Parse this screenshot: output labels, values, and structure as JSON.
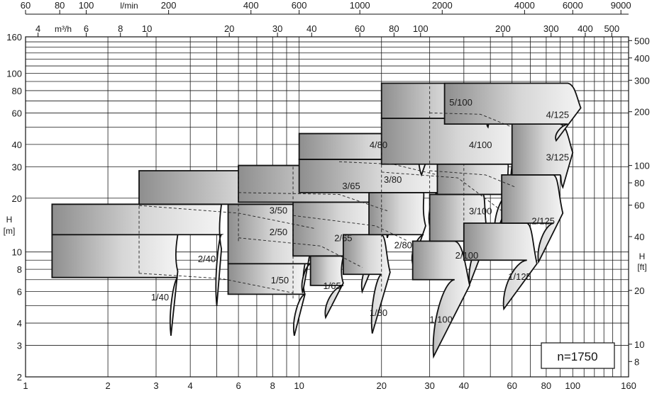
{
  "chart_data": {
    "type": "pump-selection-chart",
    "speed_label": "n=1750",
    "x_axis": {
      "scale": "log",
      "range": [
        1,
        160
      ],
      "ticks": [
        1,
        2,
        3,
        4,
        6,
        8,
        10,
        20,
        30,
        40,
        60,
        80,
        100,
        160
      ],
      "tick_labels": [
        "1",
        "2",
        "3",
        "4",
        "6",
        "8",
        "10",
        "20",
        "30",
        "40",
        "60",
        "80",
        "100",
        "160"
      ]
    },
    "x_axis_m3h": {
      "unit": "m³/h",
      "ticks": [
        4,
        6,
        8,
        10,
        20,
        30,
        40,
        60,
        80,
        100,
        200,
        300,
        400,
        500
      ],
      "tick_labels": [
        "4",
        "6",
        "8",
        "10",
        "20",
        "30",
        "40",
        "60",
        "80",
        "100",
        "200",
        "300",
        "400",
        "500"
      ]
    },
    "x_axis_lmin": {
      "unit": "l/min",
      "ticks": [
        60,
        80,
        100,
        200,
        400,
        600,
        1000,
        2000,
        4000,
        6000,
        9000
      ],
      "tick_labels": [
        "60",
        "80",
        "100",
        "200",
        "400",
        "600",
        "1000",
        "2000",
        "4000",
        "6000",
        "9000"
      ]
    },
    "y_axis": {
      "label": "H",
      "unit": "[m]",
      "scale": "log",
      "range": [
        2,
        160
      ],
      "ticks": [
        2,
        3,
        4,
        6,
        8,
        10,
        20,
        30,
        40,
        60,
        80,
        100,
        160
      ],
      "tick_labels": [
        "2",
        "3",
        "4",
        "6",
        "8",
        "10",
        "20",
        "30",
        "40",
        "60",
        "80",
        "100",
        "160"
      ]
    },
    "y_axis_ft": {
      "label": "H",
      "unit": "[ft]",
      "ticks": [
        8,
        10,
        20,
        40,
        60,
        80,
        100,
        200,
        300,
        400,
        500
      ],
      "tick_labels": [
        "8",
        "10",
        "20",
        "40",
        "60",
        "80",
        "100",
        "200",
        "300",
        "400",
        "500"
      ]
    },
    "zones": [
      {
        "label": "1/40",
        "x": [
          1.25,
          3.6
        ],
        "h_top": 12.5,
        "h_bot": 7.2,
        "end_top": [
          3.6,
          7.8
        ],
        "end_bot": [
          3.4,
          3.4
        ],
        "label_at": [
          3.1,
          5.6
        ]
      },
      {
        "label": "2/40",
        "x": [
          1.25,
          5.2
        ],
        "h_top": 18.5,
        "h_bot": 12.5,
        "end_top": [
          5.2,
          10.4
        ],
        "end_bot": [
          5.0,
          5.0
        ],
        "label_at": [
          4.6,
          9.2
        ]
      },
      {
        "label": "1/50",
        "x": [
          5.5,
          10.5
        ],
        "h_top": 8.6,
        "h_bot": 5.8,
        "end_top": [
          10.5,
          5.8
        ],
        "end_bot": [
          9.6,
          3.4
        ],
        "label_at": [
          8.5,
          7.0
        ]
      },
      {
        "label": "2/50",
        "x": [
          5.5,
          11.0
        ],
        "h_top": 18.5,
        "h_bot": 8.6,
        "end_top": [
          11.0,
          10.2
        ],
        "end_bot": [
          10.3,
          5.9
        ],
        "label_at": [
          8.4,
          13.0
        ]
      },
      {
        "label": "3/50",
        "x": [
          2.6,
          12.0
        ],
        "h_top": 28.5,
        "h_bot": 18.5,
        "end_top": [
          12.5,
          19.2
        ],
        "end_bot": [
          11.2,
          10.5
        ],
        "label_at": [
          8.4,
          17.2
        ]
      },
      {
        "label": "1/65",
        "x": [
          11.0,
          14.5
        ],
        "h_top": 9.5,
        "h_bot": 6.5,
        "end_top": [
          14.5,
          6.7
        ],
        "end_bot": [
          12.5,
          4.3
        ],
        "label_at": [
          13.2,
          6.5
        ]
      },
      {
        "label": "2/65",
        "x": [
          9.5,
          19.0
        ],
        "h_top": 19.0,
        "h_bot": 9.5,
        "end_top": [
          19.5,
          10.1
        ],
        "end_bot": [
          17.0,
          6.0
        ],
        "label_at": [
          14.5,
          12.0
        ]
      },
      {
        "label": "3/65",
        "x": [
          6.0,
          22.0
        ],
        "h_top": 30.5,
        "h_bot": 19.0,
        "end_top": [
          23.0,
          19.3
        ],
        "end_bot": [
          21.0,
          12.0
        ],
        "label_at": [
          15.5,
          23.5
        ]
      },
      {
        "label": "1/80",
        "x": [
          14.5,
          20.0
        ],
        "h_top": 12.5,
        "h_bot": 7.5,
        "end_top": [
          21.5,
          7.7
        ],
        "end_bot": [
          18.5,
          3.5
        ],
        "label_at": [
          19.5,
          4.6
        ]
      },
      {
        "label": "2/80",
        "x": [
          18.0,
          28.5
        ],
        "h_top": 21.5,
        "h_bot": 12.5,
        "end_top": [
          29.0,
          14.0
        ],
        "end_bot": [
          26.0,
          8.6
        ],
        "label_at": [
          24.0,
          11.0
        ]
      },
      {
        "label": "3/80",
        "x": [
          10.0,
          32.0
        ],
        "h_top": 33.0,
        "h_bot": 21.5,
        "end_top": [
          34.0,
          23.0
        ],
        "end_bot": [
          30.0,
          14.0
        ],
        "label_at": [
          22.0,
          25.5
        ]
      },
      {
        "label": "4/80",
        "x": [
          10.0,
          27.0
        ],
        "h_top": 46.0,
        "h_bot": 33.0,
        "end_top": [
          29.0,
          31.5
        ],
        "end_bot": [
          28.0,
          27.0
        ],
        "label_at": [
          19.5,
          40.0
        ]
      },
      {
        "label": "1/100",
        "x": [
          26.0,
          37.0
        ],
        "h_top": 11.5,
        "h_bot": 7.0,
        "end_top": [
          42.0,
          6.5
        ],
        "end_bot": [
          31.0,
          2.6
        ],
        "label_at": [
          33.0,
          4.2
        ]
      },
      {
        "label": "2/100",
        "x": [
          30.0,
          47.0
        ],
        "h_top": 21.0,
        "h_bot": 11.5,
        "end_top": [
          49.0,
          12.2
        ],
        "end_bot": [
          42.0,
          6.6
        ],
        "label_at": [
          41.0,
          9.6
        ]
      },
      {
        "label": "3/100",
        "x": [
          32.0,
          58.0
        ],
        "h_top": 31.0,
        "h_bot": 21.0,
        "end_top": [
          59.0,
          20.0
        ],
        "end_bot": [
          52.0,
          12.3
        ],
        "label_at": [
          46.0,
          17.0
        ]
      },
      {
        "label": "4/100",
        "x": [
          20.0,
          60.0
        ],
        "h_top": 56.0,
        "h_bot": 31.0,
        "end_top": [
          65.0,
          34.5
        ],
        "end_bot": [
          60.0,
          21.0
        ],
        "label_at": [
          46.0,
          40.0
        ]
      },
      {
        "label": "5/100",
        "x": [
          20.0,
          50.0
        ],
        "h_top": 88.0,
        "h_bot": 56.0,
        "end_top": [
          51.0,
          67.0
        ],
        "end_bot": [
          49.0,
          50.0
        ],
        "label_at": [
          39.0,
          69.0
        ]
      },
      {
        "label": "1/125",
        "x": [
          40.0,
          68.0
        ],
        "h_top": 14.5,
        "h_bot": 9.0,
        "end_top": [
          74.0,
          8.6
        ],
        "end_bot": [
          56.0,
          4.8
        ],
        "label_at": [
          64.0,
          7.3
        ]
      },
      {
        "label": "2/125",
        "x": [
          55.0,
          85.0
        ],
        "h_top": 27.0,
        "h_bot": 14.5,
        "end_top": [
          92.0,
          16.5
        ],
        "end_bot": [
          75.0,
          8.8
        ],
        "label_at": [
          78.0,
          15.0
        ]
      },
      {
        "label": "3/125",
        "x": [
          60.0,
          90.0
        ],
        "h_top": 52.0,
        "h_bot": 27.0,
        "end_top": [
          100.0,
          36.0
        ],
        "end_bot": [
          92.0,
          23.0
        ],
        "label_at": [
          88.0,
          34.0
        ]
      },
      {
        "label": "4/125",
        "x": [
          34.0,
          96.0
        ],
        "h_top": 88.0,
        "h_bot": 52.0,
        "end_top": [
          107.0,
          64.0
        ],
        "end_bot": [
          87.0,
          42.0
        ],
        "label_at": [
          88.0,
          59.0
        ]
      }
    ]
  }
}
